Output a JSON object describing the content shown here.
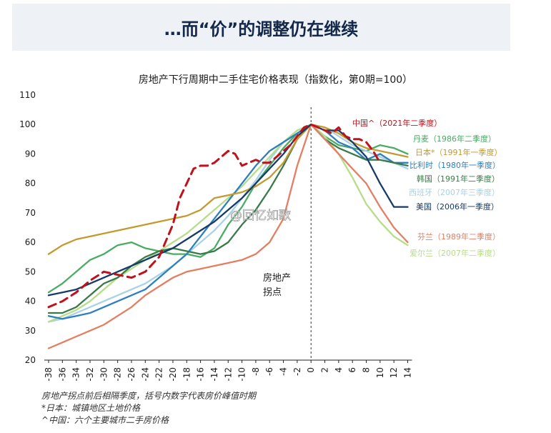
{
  "header": {
    "title": "…而“价”的调整仍在继续"
  },
  "chart_data": {
    "type": "line",
    "title": "房地产下行周期中二手住宅价格表现（指数化，第0期=100）",
    "xlabel": "",
    "ylabel": "",
    "xlim": [
      -38,
      15
    ],
    "ylim": [
      20,
      110
    ],
    "yticks": [
      20,
      30,
      40,
      50,
      60,
      70,
      80,
      90,
      100,
      110
    ],
    "xticks": [
      -38,
      -36,
      -34,
      -32,
      -30,
      -28,
      -26,
      -24,
      -22,
      -20,
      -18,
      -16,
      -14,
      -12,
      -10,
      -8,
      -6,
      -4,
      -2,
      0,
      2,
      4,
      6,
      8,
      10,
      12,
      14
    ],
    "grid": false,
    "legend": "right, inline labels",
    "annotation": "房地产\n拐点",
    "series": [
      {
        "name": "中国^（2021年二季度）",
        "color": "#c0121c",
        "dashed": true,
        "x": [
          -38,
          -36,
          -34,
          -32,
          -30,
          -28,
          -26,
          -24,
          -22,
          -20,
          -19,
          -18,
          -17,
          -16,
          -15,
          -14,
          -13,
          -12,
          -11,
          -10,
          -9,
          -8,
          -7,
          -6,
          -5,
          -4,
          -3,
          -2,
          -1,
          0,
          1,
          2,
          3,
          4,
          5,
          6,
          7,
          8,
          9,
          10
        ],
        "y": [
          38,
          40,
          43,
          47,
          50,
          49,
          48,
          50,
          55,
          66,
          75,
          80,
          85,
          86,
          86,
          87,
          89,
          91,
          90,
          86,
          87,
          88,
          87,
          87,
          89,
          91,
          93,
          96,
          99,
          100,
          99,
          98,
          97,
          99,
          96,
          95,
          95,
          94,
          91,
          87
        ]
      },
      {
        "name": "丹麦（1986年二季度）",
        "color": "#4aab63",
        "x": [
          -38,
          -36,
          -34,
          -32,
          -30,
          -28,
          -26,
          -24,
          -22,
          -20,
          -18,
          -16,
          -14,
          -12,
          -10,
          -8,
          -6,
          -4,
          -2,
          0,
          2,
          4,
          6,
          8,
          10,
          12,
          14
        ],
        "y": [
          43,
          46,
          50,
          54,
          56,
          59,
          60,
          58,
          57,
          56,
          56,
          55,
          58,
          66,
          72,
          80,
          86,
          92,
          97,
          100,
          96,
          93,
          92,
          91,
          93,
          92,
          90
        ]
      },
      {
        "name": "日本*（1991年一季度）",
        "color": "#c39a2f",
        "x": [
          -38,
          -36,
          -34,
          -32,
          -30,
          -28,
          -26,
          -24,
          -22,
          -20,
          -18,
          -16,
          -14,
          -12,
          -10,
          -8,
          -6,
          -4,
          -2,
          0,
          2,
          4,
          6,
          8,
          10,
          12,
          14
        ],
        "y": [
          56,
          59,
          61,
          62,
          63,
          64,
          65,
          66,
          67,
          68,
          69,
          71,
          75,
          76,
          77,
          79,
          82,
          87,
          95,
          100,
          99,
          97,
          94,
          92,
          91,
          90,
          89
        ]
      },
      {
        "name": "比利时（1980年一季度）",
        "color": "#2d7fbf",
        "x": [
          -38,
          -36,
          -34,
          -32,
          -30,
          -28,
          -26,
          -24,
          -22,
          -20,
          -18,
          -16,
          -14,
          -12,
          -10,
          -8,
          -6,
          -4,
          -2,
          0,
          2,
          4,
          6,
          8,
          10,
          12,
          14
        ],
        "y": [
          35,
          34,
          35,
          36,
          38,
          40,
          42,
          44,
          48,
          52,
          56,
          62,
          68,
          74,
          80,
          86,
          91,
          94,
          97,
          100,
          98,
          94,
          92,
          88,
          90,
          87,
          87
        ]
      },
      {
        "name": "韩国（1991年二季度）",
        "color": "#3a7a4a",
        "x": [
          -38,
          -36,
          -34,
          -32,
          -30,
          -28,
          -26,
          -24,
          -22,
          -20,
          -18,
          -16,
          -14,
          -12,
          -10,
          -8,
          -6,
          -4,
          -2,
          0,
          2,
          4,
          6,
          8,
          10,
          12,
          14
        ],
        "y": [
          36,
          36,
          38,
          42,
          46,
          48,
          52,
          55,
          57,
          58,
          57,
          56,
          57,
          60,
          66,
          71,
          78,
          86,
          95,
          100,
          95,
          92,
          90,
          88,
          88,
          87,
          86
        ]
      },
      {
        "name": "西班牙（2007年三季度）",
        "color": "#a9d2e6",
        "x": [
          -38,
          -36,
          -34,
          -32,
          -30,
          -28,
          -26,
          -24,
          -22,
          -20,
          -18,
          -16,
          -14,
          -12,
          -10,
          -8,
          -6,
          -4,
          -2,
          0,
          2,
          4,
          6,
          8,
          10,
          12,
          14
        ],
        "y": [
          33,
          34,
          36,
          38,
          40,
          42,
          44,
          46,
          49,
          52,
          56,
          60,
          64,
          69,
          75,
          81,
          88,
          94,
          98,
          100,
          99,
          96,
          93,
          91,
          89,
          87,
          85
        ]
      },
      {
        "name": "美国（2006年一季度）",
        "color": "#163a6a",
        "x": [
          -38,
          -36,
          -34,
          -32,
          -30,
          -28,
          -26,
          -24,
          -22,
          -20,
          -18,
          -16,
          -14,
          -12,
          -10,
          -8,
          -6,
          -4,
          -2,
          0,
          2,
          4,
          6,
          8,
          10,
          12,
          14
        ],
        "y": [
          42,
          43,
          44,
          46,
          48,
          50,
          52,
          54,
          56,
          58,
          61,
          64,
          67,
          71,
          75,
          80,
          85,
          90,
          96,
          100,
          98,
          98,
          94,
          89,
          80,
          72,
          72
        ]
      },
      {
        "name": "芬兰（1989年二季度）",
        "color": "#e47e63",
        "x": [
          -38,
          -36,
          -34,
          -32,
          -30,
          -28,
          -26,
          -24,
          -22,
          -20,
          -18,
          -16,
          -14,
          -12,
          -10,
          -8,
          -6,
          -4,
          -2,
          0,
          2,
          4,
          6,
          8,
          10,
          12,
          14
        ],
        "y": [
          24,
          26,
          28,
          30,
          32,
          35,
          38,
          42,
          45,
          48,
          50,
          51,
          52,
          53,
          54,
          56,
          60,
          68,
          86,
          100,
          95,
          90,
          85,
          80,
          72,
          65,
          60
        ]
      },
      {
        "name": "爱尔兰（2007年二季度）",
        "color": "#b7dc8a",
        "x": [
          -38,
          -36,
          -34,
          -32,
          -30,
          -28,
          -26,
          -24,
          -22,
          -20,
          -18,
          -16,
          -14,
          -12,
          -10,
          -8,
          -6,
          -4,
          -2,
          0,
          2,
          4,
          6,
          8,
          10,
          12,
          14
        ],
        "y": [
          33,
          35,
          37,
          40,
          44,
          48,
          51,
          54,
          57,
          60,
          63,
          67,
          71,
          75,
          79,
          84,
          89,
          94,
          98,
          100,
          96,
          90,
          82,
          73,
          67,
          62,
          59
        ]
      }
    ]
  },
  "footnotes": [
    "房地产拐点前后相隔季度，括号内数字代表房价峰值时期",
    "*日本：城镇地区土地价格",
    "^中国：六个主要城市二手房价格"
  ],
  "watermark": "@回忆如歌"
}
